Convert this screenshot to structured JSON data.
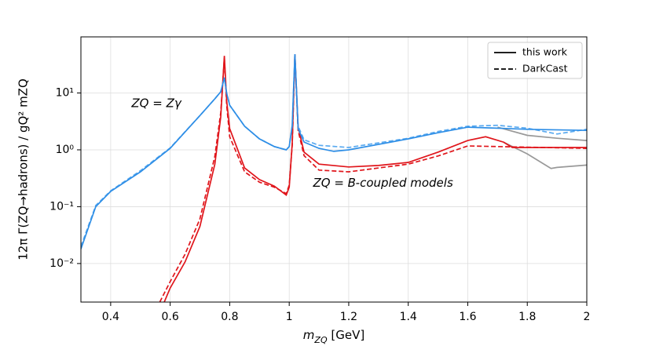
{
  "chart_data": {
    "type": "line",
    "xlabel": [
      "m",
      "ZQ",
      " [GeV]"
    ],
    "ylabel": "12π Γ(ZQ→hadrons) / gQ² mZQ",
    "annotations": [
      {
        "text": "ZQ = Zγ",
        "color": "#2e8ee6",
        "x": 0.47,
        "y": 6.5
      },
      {
        "text": "ZQ = B-coupled models",
        "color": "#e0151b",
        "x": 1.08,
        "y": 0.26
      }
    ],
    "xlim": [
      0.3,
      2.0
    ],
    "xticks": [
      0.4,
      0.6,
      0.8,
      1.0,
      1.2,
      1.4,
      1.6,
      1.8,
      2.0
    ],
    "ylim": [
      0.0021,
      97
    ],
    "yticks": [
      {
        "value": 0.01,
        "label": "10⁻²"
      },
      {
        "value": 0.1,
        "label": "10⁻¹"
      },
      {
        "value": 1,
        "label": "10⁰"
      },
      {
        "value": 10,
        "label": "10¹"
      }
    ],
    "log_y": true,
    "grid": true,
    "legend_position": "upper right",
    "legend": [
      {
        "name": "this work",
        "dash": "solid"
      },
      {
        "name": "DarkCast",
        "dash": "dashed"
      }
    ],
    "series": [
      {
        "color": "#999999",
        "dash": "solid",
        "x": [
          1.7,
          1.8,
          1.9,
          2.0
        ],
        "values": [
          2.5,
          1.8,
          1.6,
          1.46
        ]
      },
      {
        "color": "#999999",
        "dash": "solid",
        "x": [
          1.72,
          1.8,
          1.88,
          1.9,
          2.0
        ],
        "values": [
          1.37,
          0.85,
          0.47,
          0.49,
          0.54
        ]
      },
      {
        "color": "#e0151b",
        "dash": "dashed",
        "x": [
          0.565,
          0.6,
          0.65,
          0.7,
          0.75,
          0.77,
          0.782,
          0.79,
          0.8,
          0.85,
          0.9,
          0.95,
          0.99,
          1.0,
          1.01,
          1.019,
          1.03,
          1.05,
          1.1,
          1.2,
          1.4,
          1.5,
          1.6,
          1.7,
          2.0
        ],
        "values": [
          0.0021,
          0.0048,
          0.0146,
          0.061,
          0.77,
          4.5,
          41,
          6.0,
          1.7,
          0.41,
          0.27,
          0.22,
          0.17,
          0.24,
          1.2,
          45,
          2.2,
          0.79,
          0.44,
          0.41,
          0.56,
          0.78,
          1.17,
          1.14,
          1.06
        ]
      },
      {
        "color": "#e0151b",
        "dash": "solid",
        "x": [
          0.58,
          0.6,
          0.65,
          0.7,
          0.75,
          0.77,
          0.782,
          0.79,
          0.8,
          0.85,
          0.9,
          0.95,
          0.99,
          1.0,
          1.01,
          1.019,
          1.03,
          1.05,
          1.1,
          1.2,
          1.3,
          1.4,
          1.5,
          1.6,
          1.66,
          1.72,
          1.75,
          2.0
        ],
        "values": [
          0.0021,
          0.0037,
          0.0107,
          0.045,
          0.56,
          3.8,
          45,
          7.2,
          2.36,
          0.48,
          0.3,
          0.23,
          0.16,
          0.22,
          1.3,
          48,
          2.5,
          0.91,
          0.56,
          0.5,
          0.53,
          0.6,
          0.91,
          1.46,
          1.7,
          1.37,
          1.1,
          1.1
        ]
      },
      {
        "color": "#5aaaf0",
        "dash": "dashed",
        "x": [
          0.3,
          0.35,
          0.4,
          0.5,
          0.6,
          0.7,
          0.75,
          0.77,
          0.782,
          0.79,
          0.8,
          0.85,
          0.9,
          0.95,
          0.99,
          1.0,
          1.01,
          1.019,
          1.03,
          1.05,
          1.1,
          1.2,
          1.4,
          1.5,
          1.6,
          1.7,
          1.8,
          1.9,
          2.0
        ],
        "values": [
          0.02,
          0.105,
          0.19,
          0.43,
          1.08,
          4.0,
          7.9,
          10.5,
          18.6,
          9.8,
          6.1,
          2.6,
          1.56,
          1.14,
          1.0,
          1.14,
          2.6,
          48,
          2.6,
          1.5,
          1.2,
          1.1,
          1.6,
          2.1,
          2.6,
          2.7,
          2.4,
          1.9,
          2.3
        ]
      },
      {
        "color": "#2e8ee6",
        "dash": "solid",
        "x": [
          0.3,
          0.35,
          0.4,
          0.5,
          0.6,
          0.7,
          0.75,
          0.77,
          0.782,
          0.79,
          0.8,
          0.85,
          0.9,
          0.95,
          0.99,
          1.0,
          1.01,
          1.019,
          1.03,
          1.05,
          1.1,
          1.15,
          1.2,
          1.4,
          1.5,
          1.6,
          1.7,
          1.8,
          2.0
        ],
        "values": [
          0.018,
          0.1,
          0.186,
          0.41,
          1.06,
          4.0,
          7.9,
          10.5,
          18.6,
          9.8,
          6.1,
          2.6,
          1.56,
          1.14,
          1.0,
          1.14,
          2.7,
          48,
          2.36,
          1.37,
          1.06,
          0.94,
          1.0,
          1.56,
          2.0,
          2.5,
          2.4,
          2.3,
          2.2
        ]
      }
    ]
  }
}
